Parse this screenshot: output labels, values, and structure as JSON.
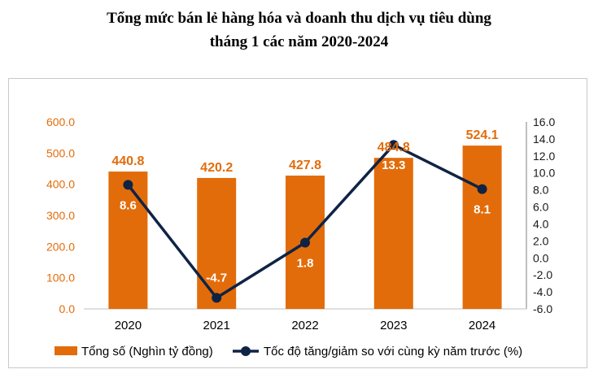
{
  "title_line1": "Tổng mức bán lẻ hàng hóa và doanh thu dịch vụ tiêu dùng",
  "title_line2": "tháng 1 các năm 2020-2024",
  "colors": {
    "bar": "#E36C0A",
    "line": "#0F2345",
    "left_axis": "#E36C0A",
    "right_axis": "#1a1a1a"
  },
  "chart_data": {
    "type": "bar",
    "categories": [
      "2020",
      "2021",
      "2022",
      "2023",
      "2024"
    ],
    "series": [
      {
        "name": "Tổng số (Nghìn tỷ đồng)",
        "type": "bar",
        "axis": "left",
        "values": [
          440.8,
          420.2,
          427.8,
          484.8,
          524.1
        ]
      },
      {
        "name": "Tốc độ tăng/giảm so với cùng kỳ năm trước (%)",
        "type": "line",
        "axis": "right",
        "values": [
          8.6,
          -4.7,
          1.8,
          13.3,
          8.1
        ]
      }
    ],
    "y_left": {
      "min": 0,
      "max": 600,
      "ticks": [
        "0.0",
        "100.0",
        "200.0",
        "300.0",
        "400.0",
        "500.0",
        "600.0"
      ]
    },
    "y_right": {
      "min": -6,
      "max": 16,
      "ticks": [
        "-6.0",
        "-4.0",
        "-2.0",
        "0.0",
        "2.0",
        "4.0",
        "6.0",
        "8.0",
        "10.0",
        "12.0",
        "14.0",
        "16.0"
      ]
    },
    "grid": false,
    "legend_position": "bottom"
  }
}
